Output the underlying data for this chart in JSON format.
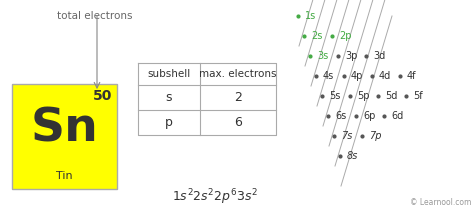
{
  "bg_color": "#ffffff",
  "element_symbol": "Sn",
  "element_name": "Tin",
  "atomic_number": "50",
  "element_bg": "#ffff00",
  "element_border": "#aaaaaa",
  "total_electrons_label": "total electrons",
  "table_headers": [
    "subshell",
    "max. electrons"
  ],
  "table_rows": [
    [
      "s",
      "2"
    ],
    [
      "p",
      "6"
    ]
  ],
  "formula_parts": [
    {
      "text": "1s",
      "super": "2",
      "italic": true
    },
    {
      "text": "2s",
      "super": "2",
      "italic": true
    },
    {
      "text": "2p",
      "super": "6",
      "italic": true
    },
    {
      "text": "3s",
      "super": "2",
      "italic": true
    }
  ],
  "credit": "© Learnool.com",
  "diagonal_rows": [
    [
      "1s"
    ],
    [
      "2s",
      "2p"
    ],
    [
      "3s",
      "3p",
      "3d"
    ],
    [
      "4s",
      "4p",
      "4d",
      "4f"
    ],
    [
      "5s",
      "5p",
      "5d",
      "5f"
    ],
    [
      "6s",
      "6p",
      "6d"
    ],
    [
      "7s",
      "7p"
    ],
    [
      "8s"
    ]
  ],
  "green_subshells": [
    "1s",
    "2s",
    "2p",
    "3s"
  ],
  "green_color": "#44aa44",
  "dark_color": "#333333",
  "gray_color": "#666666",
  "dot_color": "#555555",
  "line_color": "#aaaaaa",
  "arrow_color": "#888888"
}
